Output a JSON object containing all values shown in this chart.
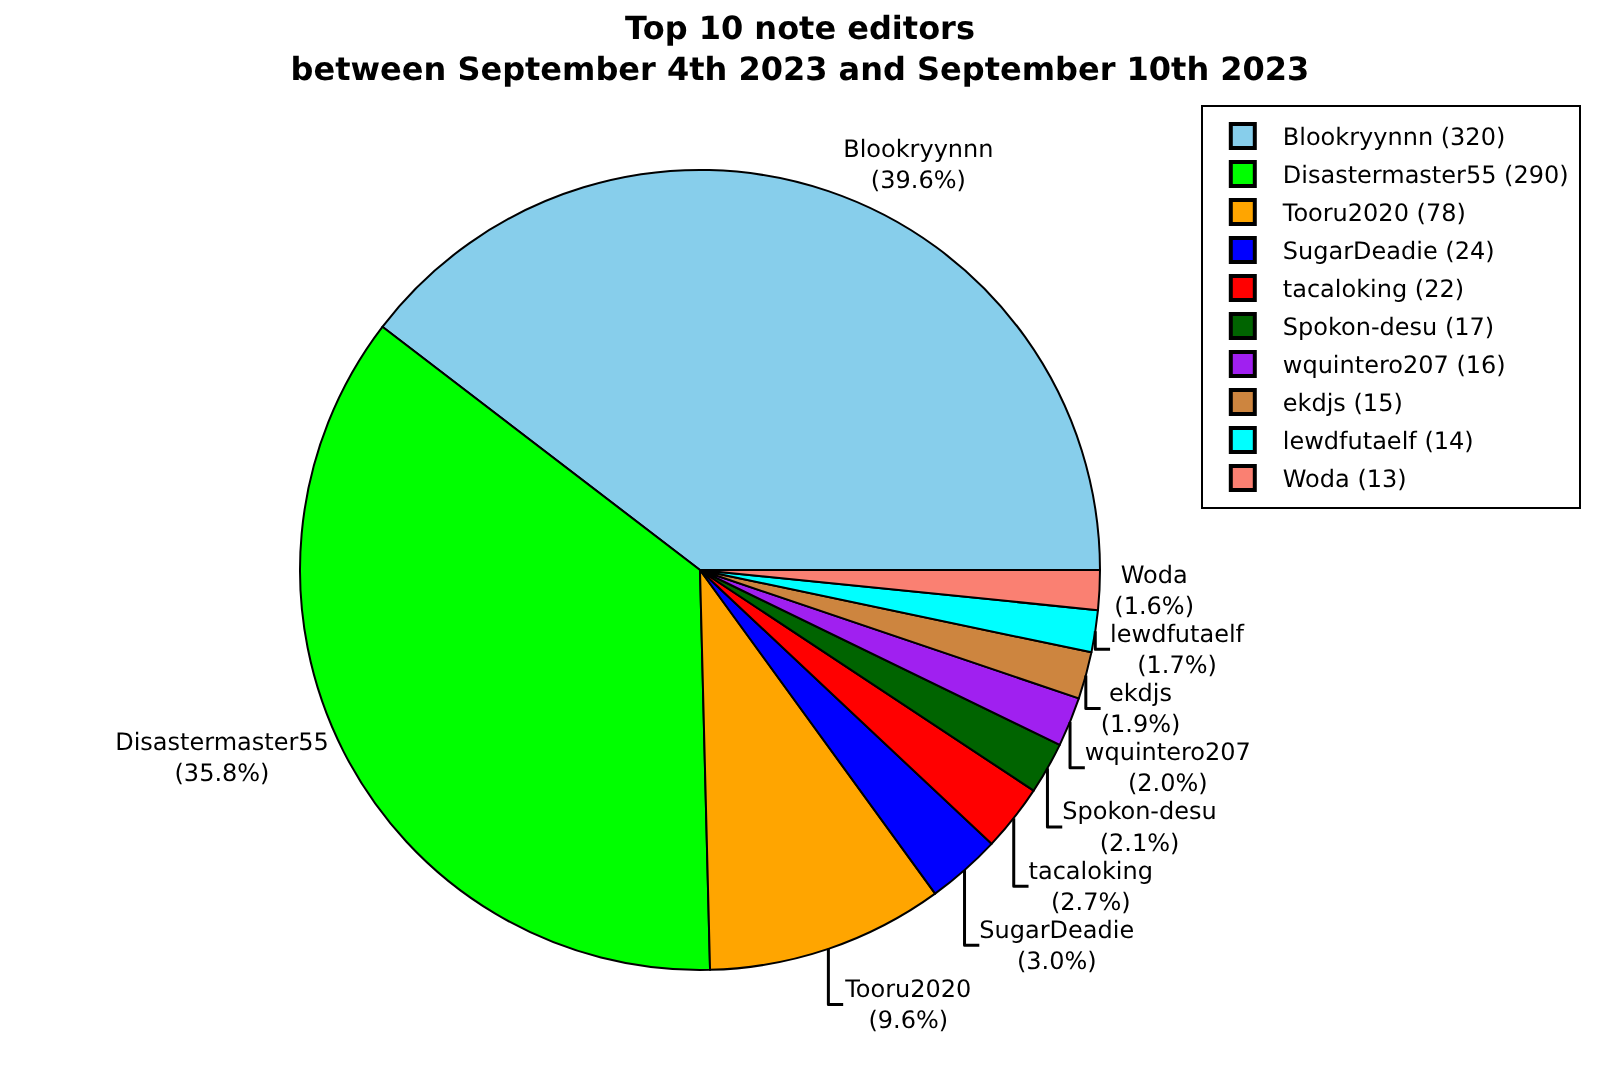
{
  "chart_data": {
    "type": "pie",
    "title": "Top 10 note editors\nbetween September 4th 2023 and September 10th 2023",
    "categories": [
      "Blookryynnn (320)",
      "Disastermaster55 (290)",
      "Tooru2020 (78)",
      "SugarDeadie (24)",
      "tacaloking (22)",
      "Spokon-desu (17)",
      "wquintero207 (16)",
      "ekdjs (15)",
      "lewdfutaelf (14)",
      "Woda (13)"
    ],
    "values": [
      39.6,
      35.8,
      9.6,
      3.0,
      2.7,
      2.1,
      2.0,
      1.9,
      1.7,
      1.6
    ],
    "value_labels": [
      "Blookryynnn\n(39.6%)",
      "Disastermaster55\n(35.8%)",
      "Tooru2020\n(9.6%)",
      "SugarDeadie\n(3.0%)",
      "tacaloking\n(2.7%)",
      "Spokon-desu\n(2.1%)",
      "wquintero207\n(2.0%)",
      "ekdjs\n(1.9%)",
      "lewdfutaelf\n(1.7%)",
      "Woda\n(1.6%)"
    ],
    "colors": [
      "#87ceeb",
      "#00ff00",
      "#ffa500",
      "#0000ff",
      "#ff0000",
      "#006400",
      "#a020f0",
      "#cd853f",
      "#00ffff",
      "#fa8072"
    ],
    "legend": "top right"
  }
}
